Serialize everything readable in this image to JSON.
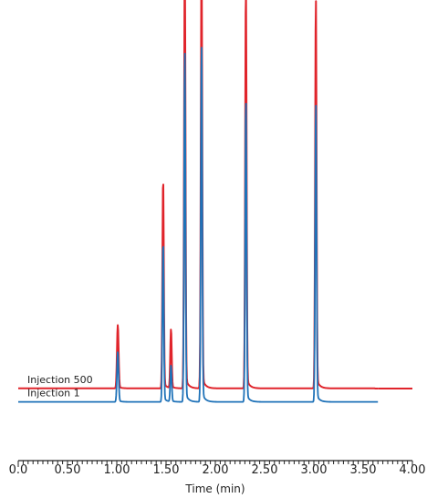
{
  "chart_data": {
    "type": "line",
    "title": "",
    "xlabel": "Time (min)",
    "ylabel": "",
    "xlim": [
      0.0,
      4.0
    ],
    "ylim": [
      0,
      100
    ],
    "x_ticks": [
      "0.0",
      "0.50",
      "1.00",
      "1.50",
      "2.00",
      "2.50",
      "3.00",
      "3.50",
      "4.00"
    ],
    "x_tick_values": [
      0.0,
      0.5,
      1.0,
      1.5,
      2.0,
      2.5,
      3.0,
      3.5,
      4.0
    ],
    "grid": false,
    "legend": "inline-left",
    "series": [
      {
        "name": "Injection 500",
        "color": "#e0242b",
        "baseline": 16,
        "end": 3.65,
        "step": 0.05,
        "peaks": [
          {
            "t": 1.01,
            "height": 14,
            "width": 0.008
          },
          {
            "t": 1.47,
            "height": 46,
            "width": 0.007
          },
          {
            "t": 1.55,
            "height": 13,
            "width": 0.007
          },
          {
            "t": 1.69,
            "height": 94,
            "width": 0.007
          },
          {
            "t": 1.86,
            "height": 95,
            "width": 0.007
          },
          {
            "t": 2.31,
            "height": 88,
            "width": 0.007
          },
          {
            "t": 3.02,
            "height": 85,
            "width": 0.007
          }
        ]
      },
      {
        "name": "Injection 1",
        "color": "#1f72b8",
        "baseline": 13,
        "end": 3.65,
        "step": 0.0,
        "peaks": [
          {
            "t": 1.01,
            "height": 11,
            "width": 0.008
          },
          {
            "t": 1.47,
            "height": 35,
            "width": 0.007
          },
          {
            "t": 1.55,
            "height": 8,
            "width": 0.007
          },
          {
            "t": 1.69,
            "height": 76,
            "width": 0.007
          },
          {
            "t": 1.86,
            "height": 78,
            "width": 0.007
          },
          {
            "t": 2.31,
            "height": 66,
            "width": 0.007
          },
          {
            "t": 3.02,
            "height": 65,
            "width": 0.007
          }
        ]
      }
    ]
  }
}
